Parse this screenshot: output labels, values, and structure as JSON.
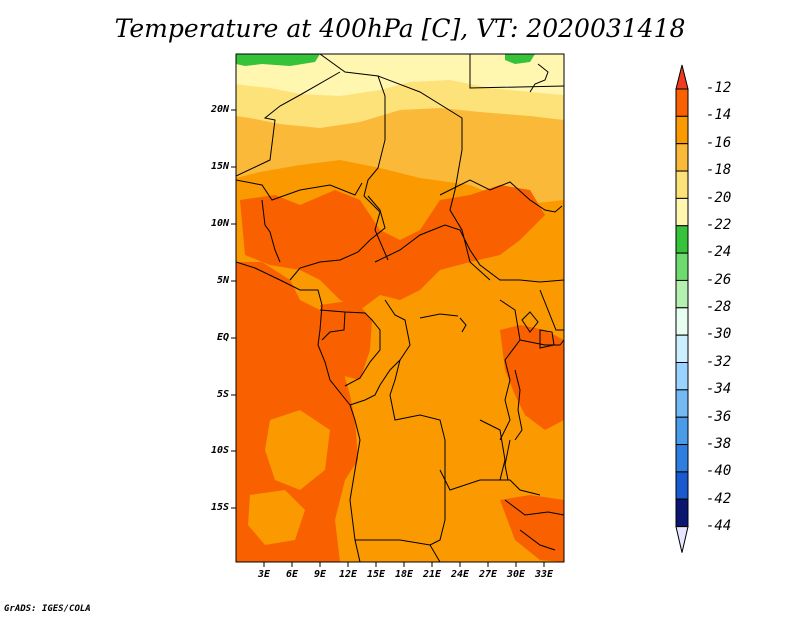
{
  "title": "Temperature at 400hPa [C], VT: 2020031418",
  "credit": "GrADS: IGES/COLA",
  "map": {
    "lat_labels": [
      "20N",
      "15N",
      "10N",
      "5N",
      "EQ",
      "5S",
      "10S",
      "15S"
    ],
    "lon_labels": [
      "3E",
      "6E",
      "9E",
      "12E",
      "15E",
      "18E",
      "21E",
      "24E",
      "27E",
      "30E",
      "33E"
    ]
  },
  "colorbar": {
    "labels": [
      "-12",
      "-14",
      "-16",
      "-18",
      "-20",
      "-22",
      "-24",
      "-26",
      "-28",
      "-30",
      "-32",
      "-34",
      "-36",
      "-38",
      "-40",
      "-42",
      "-44"
    ],
    "colors": {
      "top_arrow": "#f03c1e",
      "bands": [
        "#f86000",
        "#fa9a00",
        "#fbb93a",
        "#fde27a",
        "#fff6b0",
        "#36c33a",
        "#6edb6e",
        "#b4f0b0",
        "#e6fff0",
        "#ccefff",
        "#9ad3ff",
        "#74b8f4",
        "#4a9be8",
        "#2e7ee0",
        "#1a5ad0",
        "#0e3ab8"
      ],
      "bottom_band": "#0a1670",
      "bottom_arrow": "#e6e6ff"
    }
  },
  "fills": {
    "lightest": "#fff6b0",
    "light": "#fde27a",
    "mid": "#fbb93a",
    "orange": "#fa9a00",
    "dark": "#f86000",
    "green": "#36c33a",
    "lightgreen": "#6edb6e"
  }
}
